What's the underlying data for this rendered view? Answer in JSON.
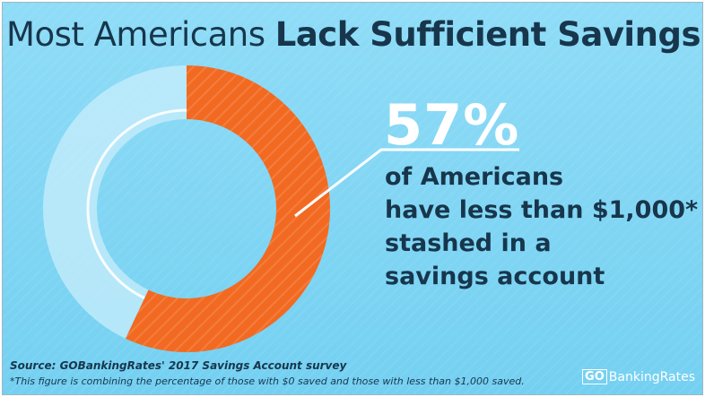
{
  "title": {
    "light": "Most Americans",
    "bold": "Lack Sufficient Savings"
  },
  "stat": "57%",
  "description": [
    "of Americans",
    "have less than $1,000*",
    "stashed in a",
    "savings account"
  ],
  "source": "Source: GOBankingRates' 2017 Savings Account survey",
  "footnote": "*This figure is combining the percentage of those with $0 saved and those with less than $1,000 saved.",
  "brand": {
    "go": "GO",
    "name": "BankingRates"
  },
  "colors": {
    "accent": "#f26a21",
    "track": "#c8eefb",
    "ink": "#17364c",
    "background": "#7fd6f4"
  },
  "chart_data": {
    "type": "pie",
    "variant": "donut",
    "slices": [
      {
        "value": 57,
        "color": "#f26a21"
      },
      {
        "value": 43,
        "color": "#c8eefb"
      }
    ],
    "data_labels": [
      "57%"
    ]
  }
}
